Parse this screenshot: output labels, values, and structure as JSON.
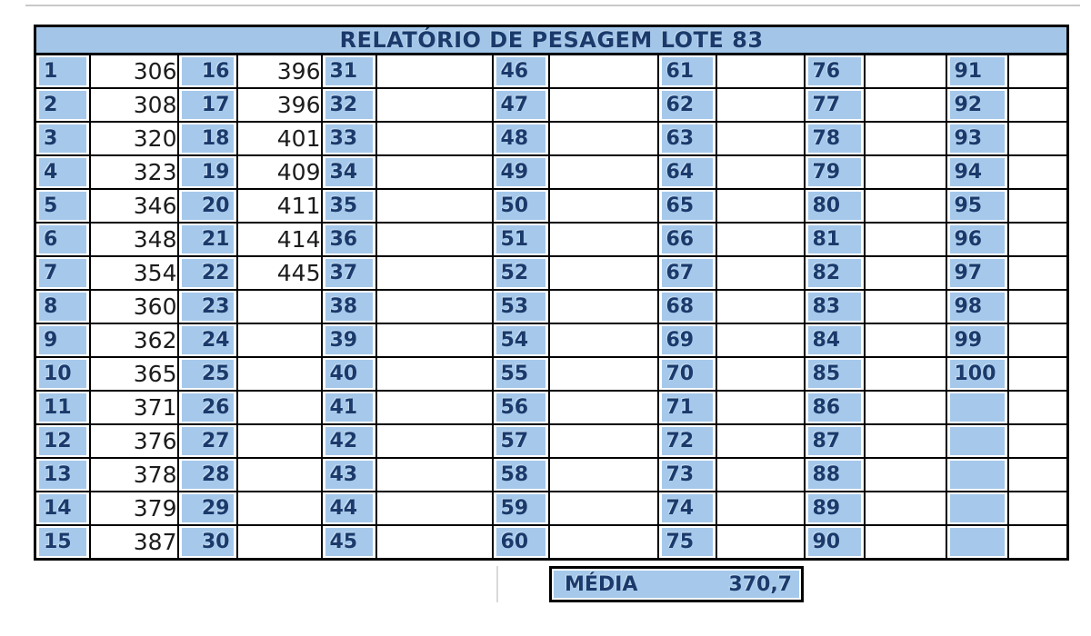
{
  "title": "RELATÓRIO DE PESAGEM LOTE 83",
  "summary": {
    "label": "MÉDIA",
    "value": "370,7"
  },
  "colors": {
    "cell_blue": "#a6c9eb",
    "header_blue": "#a2c5e8",
    "navy_text": "#1b3a6b",
    "value_text": "#1c1c1c",
    "border": "#000000"
  },
  "table": {
    "rows_per_column": 15,
    "columns": [
      {
        "nums": [
          "1",
          "2",
          "3",
          "4",
          "5",
          "6",
          "7",
          "8",
          "9",
          "10",
          "11",
          "12",
          "13",
          "14",
          "15"
        ],
        "vals": [
          "306",
          "308",
          "320",
          "323",
          "346",
          "348",
          "354",
          "360",
          "362",
          "365",
          "371",
          "376",
          "378",
          "379",
          "387"
        ]
      },
      {
        "nums": [
          "16",
          "17",
          "18",
          "19",
          "20",
          "21",
          "22",
          "23",
          "24",
          "25",
          "26",
          "27",
          "28",
          "29",
          "30"
        ],
        "vals": [
          "396",
          "396",
          "401",
          "409",
          "411",
          "414",
          "445",
          "",
          "",
          "",
          "",
          "",
          "",
          "",
          ""
        ]
      },
      {
        "nums": [
          "31",
          "32",
          "33",
          "34",
          "35",
          "36",
          "37",
          "38",
          "39",
          "40",
          "41",
          "42",
          "43",
          "44",
          "45"
        ],
        "vals": [
          "",
          "",
          "",
          "",
          "",
          "",
          "",
          "",
          "",
          "",
          "",
          "",
          "",
          "",
          ""
        ]
      },
      {
        "nums": [
          "46",
          "47",
          "48",
          "49",
          "50",
          "51",
          "52",
          "53",
          "54",
          "55",
          "56",
          "57",
          "58",
          "59",
          "60"
        ],
        "vals": [
          "",
          "",
          "",
          "",
          "",
          "",
          "",
          "",
          "",
          "",
          "",
          "",
          "",
          "",
          ""
        ]
      },
      {
        "nums": [
          "61",
          "62",
          "63",
          "64",
          "65",
          "66",
          "67",
          "68",
          "69",
          "70",
          "71",
          "72",
          "73",
          "74",
          "75"
        ],
        "vals": [
          "",
          "",
          "",
          "",
          "",
          "",
          "",
          "",
          "",
          "",
          "",
          "",
          "",
          "",
          ""
        ]
      },
      {
        "nums": [
          "76",
          "77",
          "78",
          "79",
          "80",
          "81",
          "82",
          "83",
          "84",
          "85",
          "86",
          "87",
          "88",
          "89",
          "90"
        ],
        "vals": [
          "",
          "",
          "",
          "",
          "",
          "",
          "",
          "",
          "",
          "",
          "",
          "",
          "",
          "",
          ""
        ]
      },
      {
        "nums": [
          "91",
          "92",
          "93",
          "94",
          "95",
          "96",
          "97",
          "98",
          "99",
          "100",
          "",
          "",
          "",
          "",
          ""
        ],
        "vals": [
          "",
          "",
          "",
          "",
          "",
          "",
          "",
          "",
          "",
          "",
          "",
          "",
          "",
          "",
          ""
        ]
      }
    ]
  }
}
